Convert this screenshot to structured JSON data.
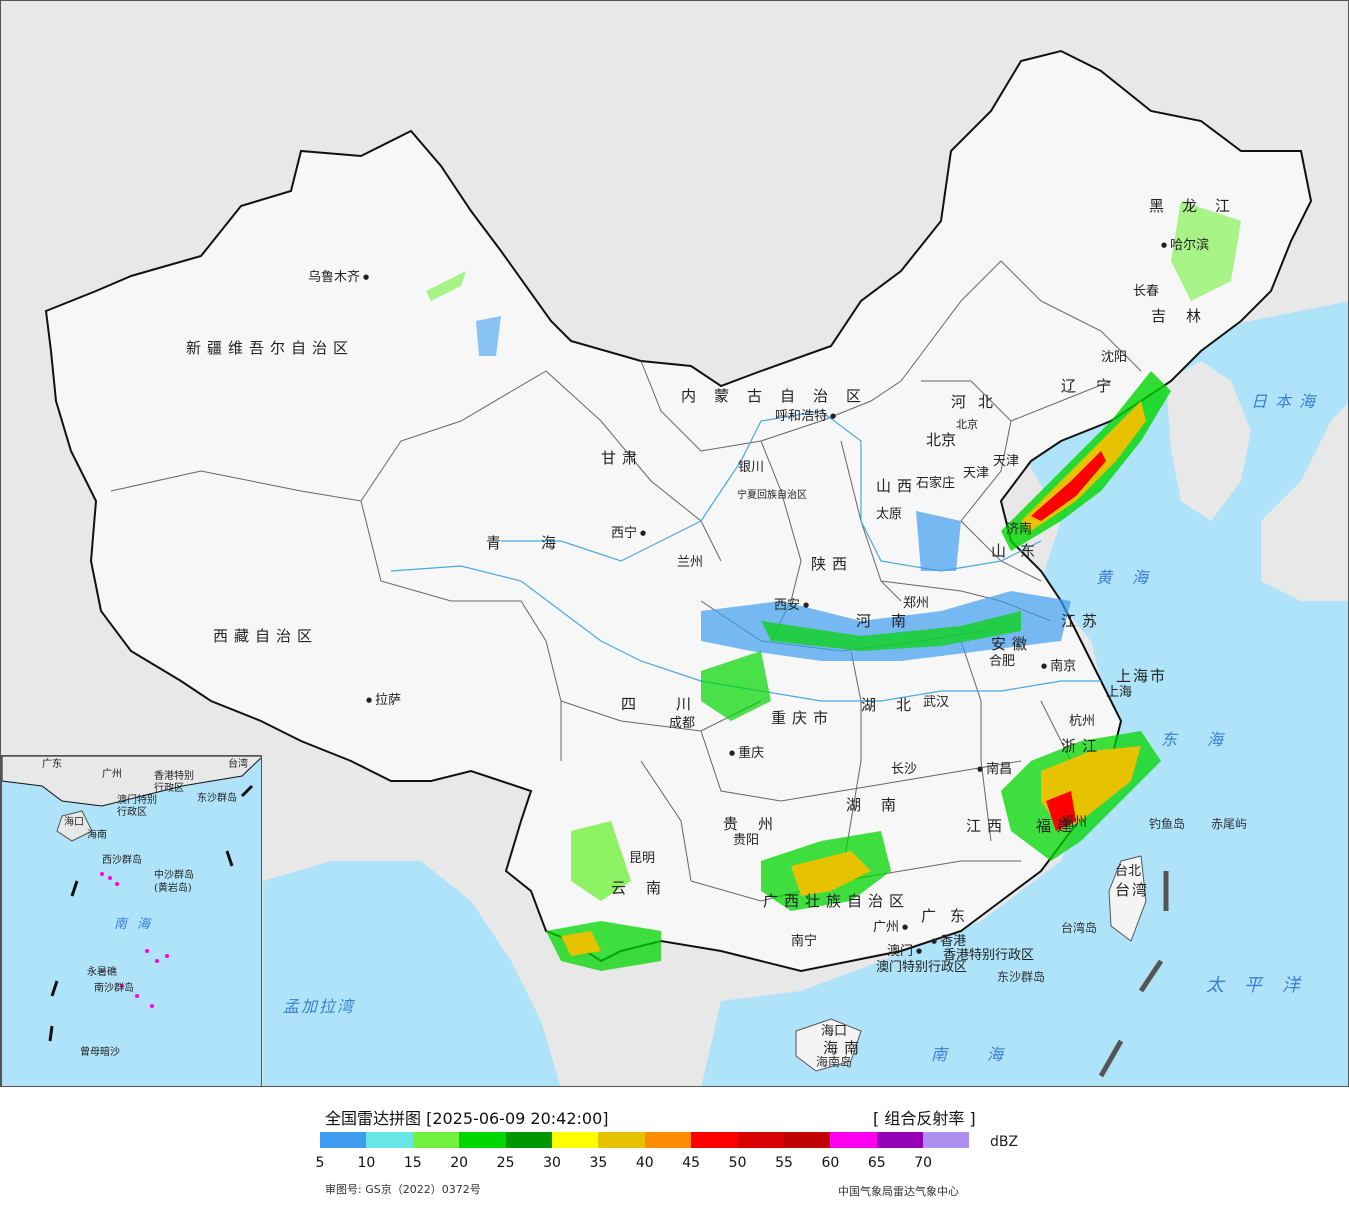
{
  "title": "全国雷达拼图 [2025-06-09 20:42:00]",
  "product": "[ 组合反射率 ]",
  "unit": "dBZ",
  "legend": {
    "colors": [
      "#3d9cf0",
      "#66e6e6",
      "#72f03e",
      "#00d600",
      "#009600",
      "#ffff00",
      "#e6c200",
      "#ff8c00",
      "#ff0000",
      "#d60000",
      "#c00000",
      "#ff00f0",
      "#9600b4",
      "#ad8ff0"
    ],
    "ticks": [
      "5",
      "10",
      "15",
      "20",
      "25",
      "30",
      "35",
      "40",
      "45",
      "50",
      "55",
      "60",
      "65",
      "70"
    ]
  },
  "footer": {
    "approval": "审图号: GS京（2022）0372号",
    "agency": "中国气象局雷达气象中心"
  },
  "regions": [
    "新疆维吾尔自治区",
    "西藏自治区",
    "青海",
    "甘肃",
    "内蒙古自治区",
    "黑龙江",
    "吉林",
    "辽宁",
    "河北",
    "山西",
    "山东",
    "陕西",
    "河南",
    "江苏",
    "安徽",
    "湖北",
    "四川",
    "重庆市",
    "贵州",
    "云南",
    "湖南",
    "江西",
    "浙江",
    "福建",
    "广东",
    "广西壮族自治区",
    "海南",
    "宁夏回族自治区",
    "上海市",
    "天津",
    "北京"
  ],
  "cities": [
    "乌鲁木齐",
    "拉萨",
    "西宁",
    "兰州",
    "银川",
    "呼和浩特",
    "北京",
    "天津",
    "石家庄",
    "太原",
    "西安",
    "郑州",
    "济南",
    "南京",
    "合肥",
    "上海",
    "杭州",
    "武汉",
    "成都",
    "重庆",
    "贵阳",
    "昆明",
    "长沙",
    "南昌",
    "福州",
    "广州",
    "南宁",
    "海口",
    "哈尔滨",
    "长春",
    "沈阳",
    "台北",
    "香港",
    "澳门"
  ],
  "seas": [
    "日本海",
    "黄海",
    "东海",
    "太平洋",
    "南海",
    "孟加拉湾"
  ],
  "islands": [
    "钓鱼岛",
    "赤尾屿",
    "台湾岛",
    "东沙群岛",
    "香港特别行政区",
    "澳门特别行政区",
    "海南岛",
    "台湾"
  ],
  "inset": {
    "labels": [
      "广东",
      "台湾",
      "广州",
      "香港特别",
      "行政区",
      "澳门特别",
      "行政区",
      "东沙群岛",
      "海口",
      "海南",
      "西沙群岛",
      "中沙群岛",
      "(黄岩岛)",
      "南海",
      "南沙群岛",
      "曾母暗沙",
      "永暑礁"
    ]
  }
}
